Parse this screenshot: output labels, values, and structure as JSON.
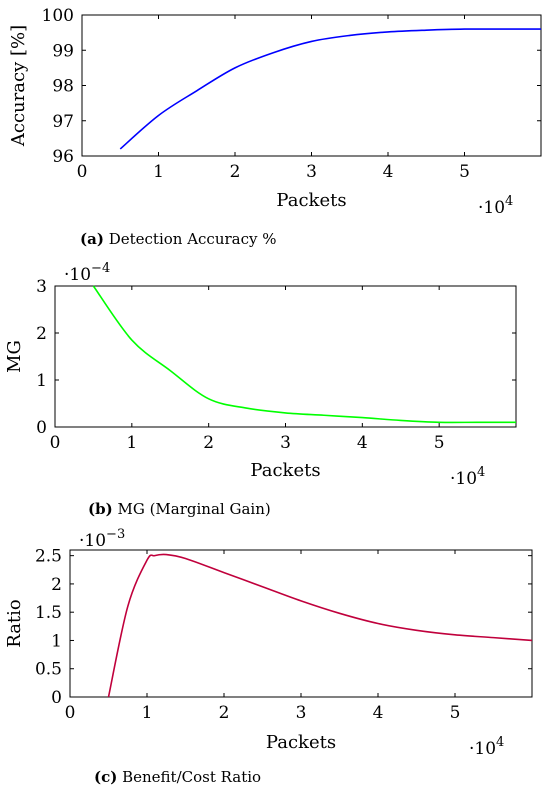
{
  "chart_data": [
    {
      "type": "line",
      "caption_label": "(a)",
      "caption_text": "Detection Accuracy %",
      "xlabel": "Packets",
      "ylabel": "Accuracy [%]",
      "x_exponent": "·10",
      "x_exponent_power": "4",
      "y_exponent": "",
      "y_exponent_power": "",
      "xlim": [
        0,
        6
      ],
      "ylim": [
        96,
        100
      ],
      "xticks": [
        0,
        1,
        2,
        3,
        4,
        5
      ],
      "xtick_labels": [
        "0",
        "1",
        "2",
        "3",
        "4",
        "5"
      ],
      "yticks": [
        96,
        97,
        98,
        99,
        100
      ],
      "ytick_labels": [
        "96",
        "97",
        "98",
        "99",
        "100"
      ],
      "color": "#0000ff",
      "series": [
        {
          "x": [
            0.5,
            1,
            1.5,
            2,
            2.5,
            3,
            3.5,
            4,
            4.5,
            5,
            5.5,
            6
          ],
          "y": [
            96.2,
            97.15,
            97.85,
            98.5,
            98.93,
            99.25,
            99.42,
            99.52,
            99.57,
            99.6,
            99.6,
            99.6
          ]
        }
      ]
    },
    {
      "type": "line",
      "caption_label": "(b)",
      "caption_text": "MG (Marginal Gain)",
      "xlabel": "Packets",
      "ylabel": "MG",
      "x_exponent": "·10",
      "x_exponent_power": "4",
      "y_exponent": "·10",
      "y_exponent_power": "−4",
      "xlim": [
        0,
        6
      ],
      "ylim": [
        0,
        3
      ],
      "xticks": [
        0,
        1,
        2,
        3,
        4,
        5
      ],
      "xtick_labels": [
        "0",
        "1",
        "2",
        "3",
        "4",
        "5"
      ],
      "yticks": [
        0,
        1,
        2,
        3
      ],
      "ytick_labels": [
        "0",
        "1",
        "2",
        "3"
      ],
      "color": "#00ff00",
      "series": [
        {
          "x": [
            0.5,
            1,
            1.5,
            2,
            2.5,
            3,
            3.5,
            4,
            4.5,
            5,
            5.5,
            6
          ],
          "y": [
            3.0,
            1.85,
            1.2,
            0.6,
            0.4,
            0.3,
            0.25,
            0.2,
            0.14,
            0.1,
            0.1,
            0.1
          ]
        }
      ]
    },
    {
      "type": "line",
      "caption_label": "(c)",
      "caption_text": "Benefit/Cost Ratio",
      "xlabel": "Packets",
      "ylabel": "Ratio",
      "x_exponent": "·10",
      "x_exponent_power": "4",
      "y_exponent": "·10",
      "y_exponent_power": "−3",
      "xlim": [
        0,
        6
      ],
      "ylim": [
        0,
        2.6
      ],
      "xticks": [
        0,
        1,
        2,
        3,
        4,
        5
      ],
      "xtick_labels": [
        "0",
        "1",
        "2",
        "3",
        "4",
        "5"
      ],
      "yticks": [
        0,
        0.5,
        1,
        1.5,
        2,
        2.5
      ],
      "ytick_labels": [
        "0",
        "0.5",
        "1",
        "1.5",
        "2",
        "2.5"
      ],
      "color": "#c0003c",
      "series": [
        {
          "x": [
            0.5,
            0.75,
            1,
            1.1,
            1.25,
            1.5,
            2,
            2.5,
            3,
            3.5,
            4,
            4.5,
            5,
            5.5,
            6
          ],
          "y": [
            0,
            1.6,
            2.42,
            2.5,
            2.52,
            2.45,
            2.2,
            1.95,
            1.7,
            1.48,
            1.3,
            1.18,
            1.1,
            1.05,
            1.0
          ]
        }
      ]
    }
  ]
}
